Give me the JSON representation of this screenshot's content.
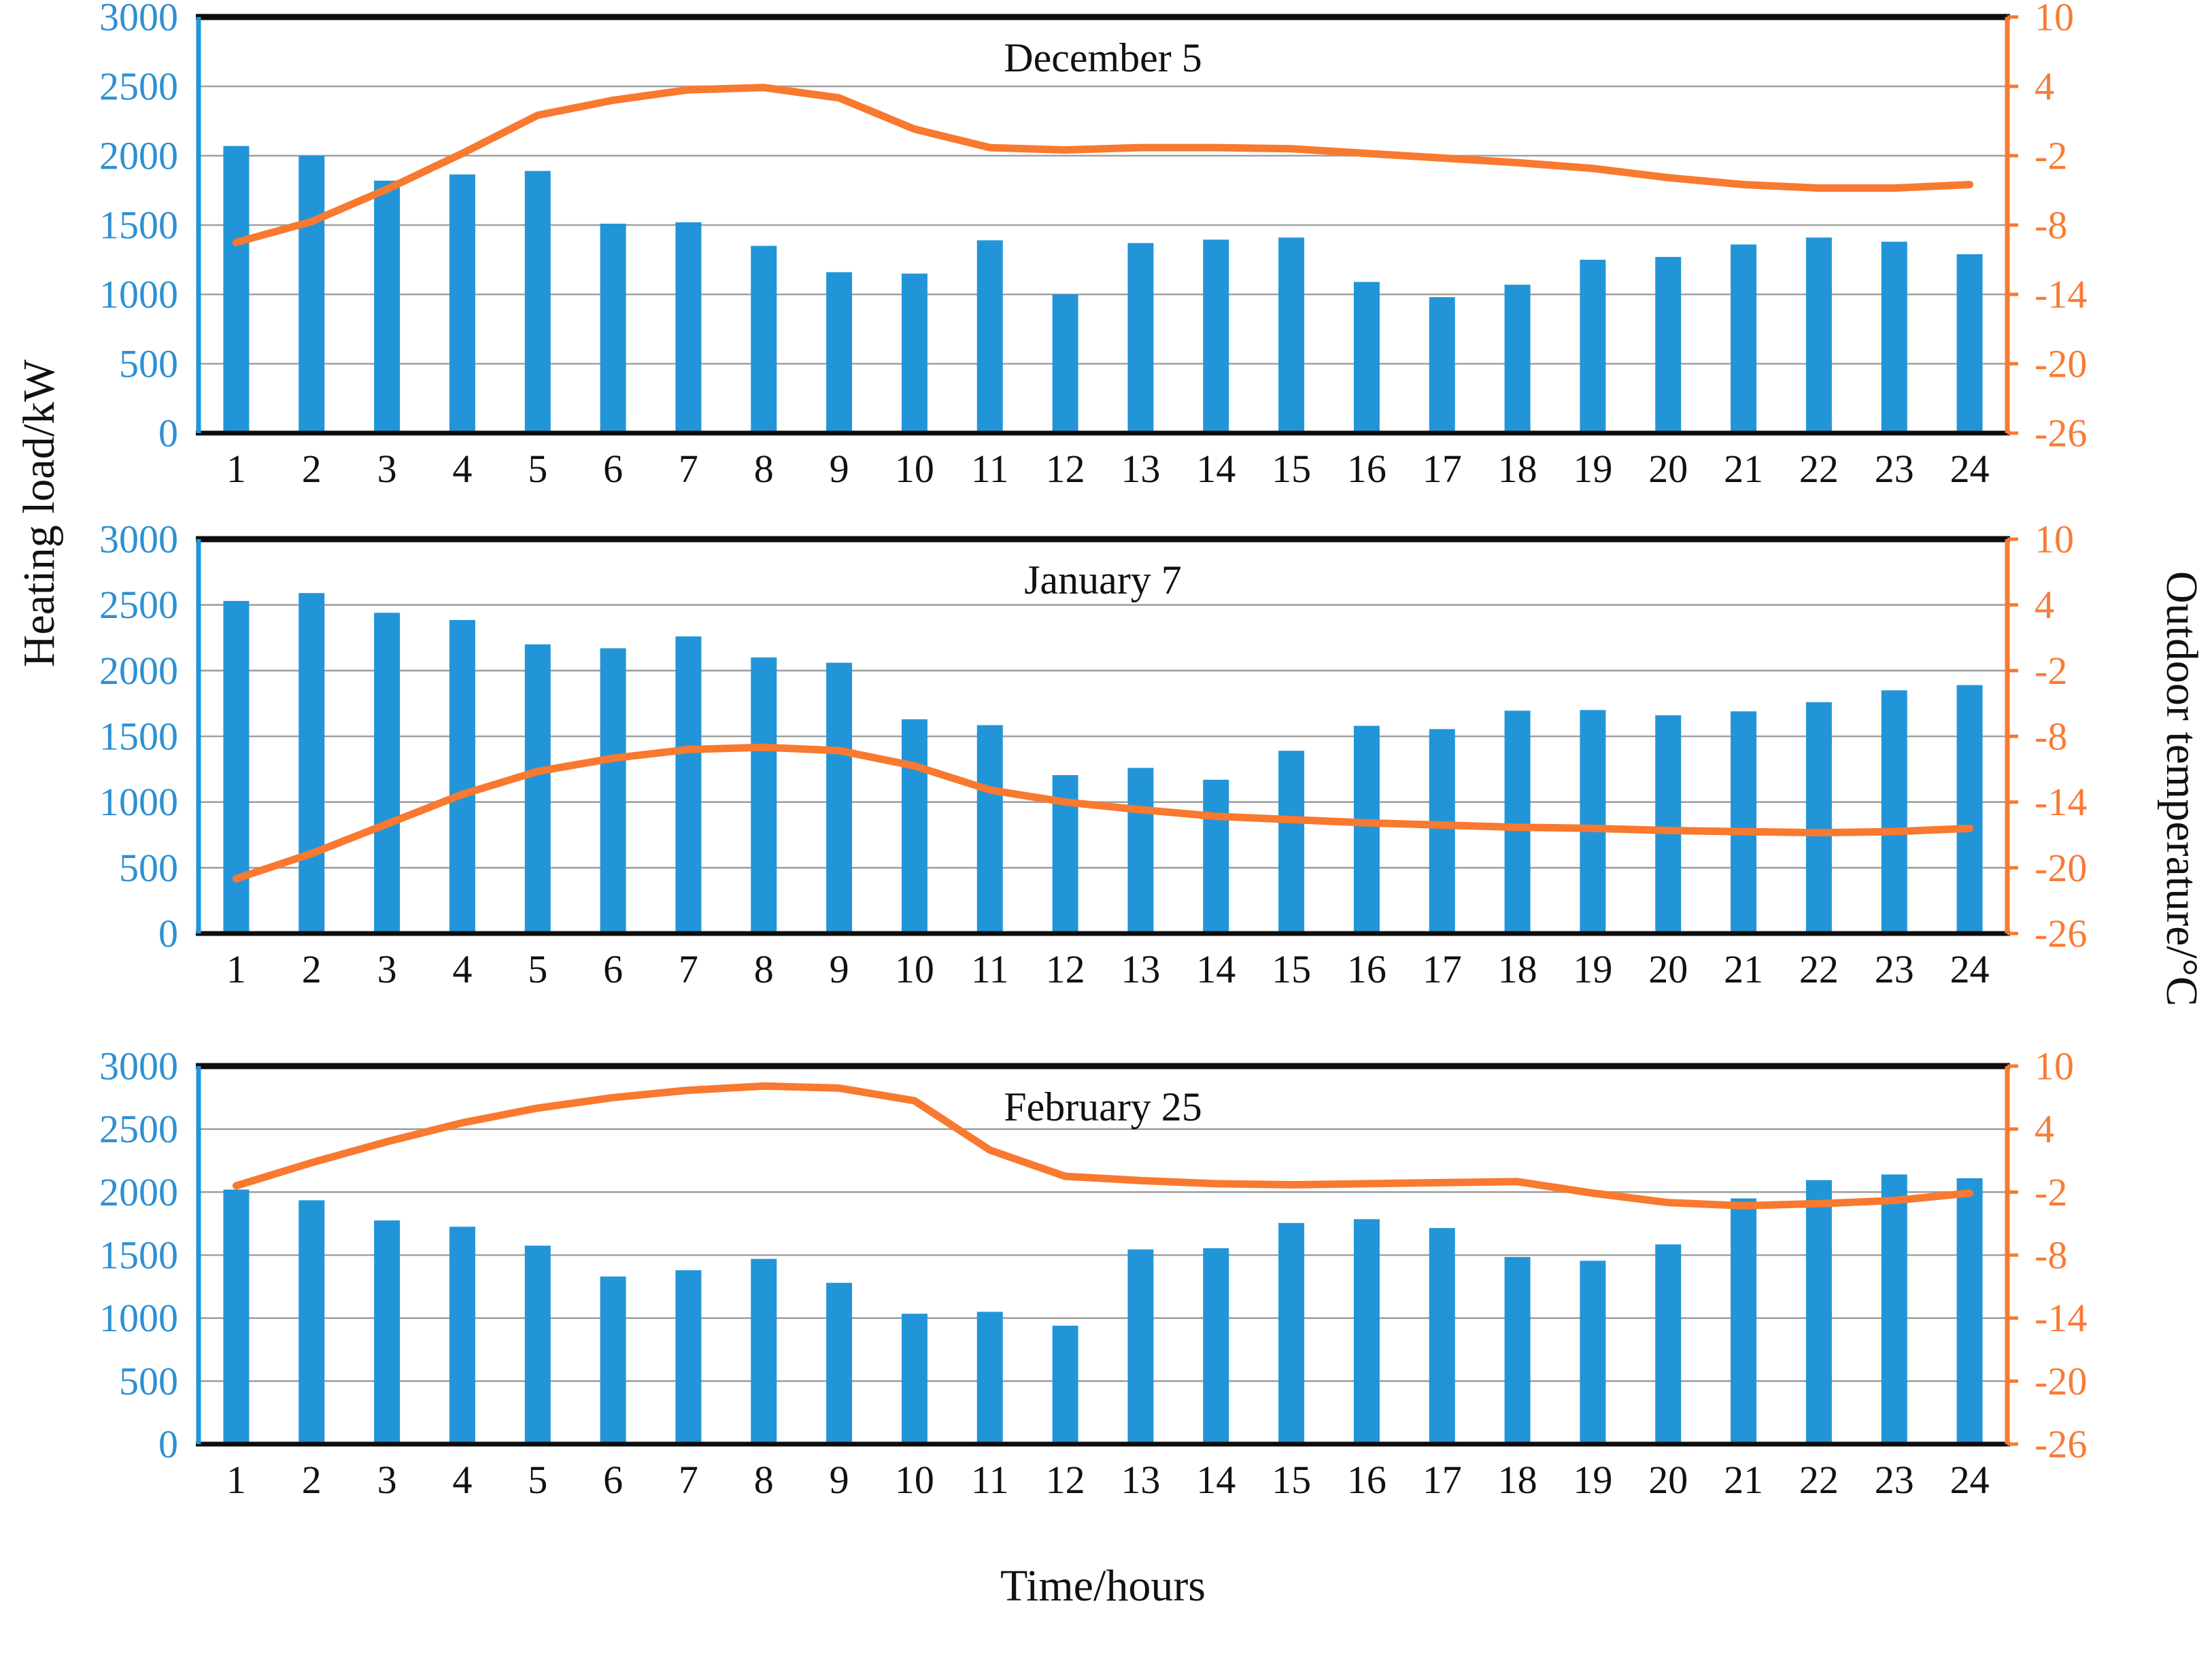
{
  "figure": {
    "y_axis_left": {
      "label": "Heating load/kW",
      "ticks": [
        0,
        500,
        1000,
        1500,
        2000,
        2500,
        3000
      ],
      "color": "#2e90d2"
    },
    "y_axis_right": {
      "label": "Outdoor temperature/°C",
      "ticks": [
        10,
        4,
        -2,
        -8,
        -14,
        -20,
        -26
      ],
      "color": "#f87c35"
    },
    "x_axis": {
      "label": "Time/hours",
      "ticks": [
        1,
        2,
        3,
        4,
        5,
        6,
        7,
        8,
        9,
        10,
        11,
        12,
        13,
        14,
        15,
        16,
        17,
        18,
        19,
        20,
        21,
        22,
        23,
        24
      ]
    }
  },
  "colors": {
    "bar": "#2295d8",
    "line": "#f8792f",
    "grid": "#a0a0a0",
    "frame": "#0d0d0d",
    "left_tick_text": "#2e90d2",
    "right_tick_text": "#f87c35",
    "x_tick_text": "#111111"
  },
  "chart_data": [
    {
      "type": "bar",
      "title": "December 5",
      "x": [
        1,
        2,
        3,
        4,
        5,
        6,
        7,
        8,
        9,
        10,
        11,
        12,
        13,
        14,
        15,
        16,
        17,
        18,
        19,
        20,
        21,
        22,
        23,
        24
      ],
      "xlabel": "Time/hours",
      "ylabel_left": "Heating load/kW",
      "ylabel_right": "Outdoor temperature/°C",
      "left_ylim": [
        0,
        3000
      ],
      "right_ylim": [
        -26,
        10
      ],
      "grid": true,
      "series": [
        {
          "name": "Heating load/kW",
          "type": "bar",
          "axis": "left",
          "values": [
            2070,
            2000,
            1820,
            1865,
            1890,
            1510,
            1520,
            1350,
            1160,
            1150,
            1390,
            1000,
            1370,
            1395,
            1410,
            1090,
            980,
            1070,
            1250,
            1270,
            1360,
            1410,
            1380,
            1290
          ]
        },
        {
          "name": "Outdoor temperature/°C",
          "type": "line",
          "axis": "right",
          "values": [
            -9.5,
            -7.7,
            -4.9,
            -1.8,
            1.5,
            2.8,
            3.7,
            3.9,
            3.0,
            0.3,
            -1.3,
            -1.5,
            -1.3,
            -1.3,
            -1.4,
            -1.8,
            -2.2,
            -2.6,
            -3.1,
            -3.9,
            -4.5,
            -4.8,
            -4.8,
            -4.5
          ]
        }
      ]
    },
    {
      "type": "bar",
      "title": "January 7",
      "x": [
        1,
        2,
        3,
        4,
        5,
        6,
        7,
        8,
        9,
        10,
        11,
        12,
        13,
        14,
        15,
        16,
        17,
        18,
        19,
        20,
        21,
        22,
        23,
        24
      ],
      "xlabel": "Time/hours",
      "ylabel_left": "Heating load/kW",
      "ylabel_right": "Outdoor temperature/°C",
      "left_ylim": [
        0,
        3000
      ],
      "right_ylim": [
        -26,
        10
      ],
      "grid": true,
      "series": [
        {
          "name": "Heating load/kW",
          "type": "bar",
          "axis": "left",
          "values": [
            2530,
            2590,
            2440,
            2385,
            2200,
            2170,
            2260,
            2100,
            2060,
            1630,
            1585,
            1205,
            1260,
            1170,
            1390,
            1580,
            1555,
            1695,
            1700,
            1660,
            1690,
            1760,
            1850,
            1890
          ]
        },
        {
          "name": "Outdoor temperature/°C",
          "type": "line",
          "axis": "right",
          "values": [
            -21.0,
            -18.7,
            -16.0,
            -13.3,
            -11.2,
            -10.0,
            -9.2,
            -9.0,
            -9.3,
            -10.7,
            -12.9,
            -14.0,
            -14.7,
            -15.3,
            -15.6,
            -15.9,
            -16.1,
            -16.3,
            -16.4,
            -16.6,
            -16.7,
            -16.8,
            -16.7,
            -16.4
          ]
        }
      ]
    },
    {
      "type": "bar",
      "title": "February 25",
      "x": [
        1,
        2,
        3,
        4,
        5,
        6,
        7,
        8,
        9,
        10,
        11,
        12,
        13,
        14,
        15,
        16,
        17,
        18,
        19,
        20,
        21,
        22,
        23,
        24
      ],
      "xlabel": "Time/hours",
      "ylabel_left": "Heating load/kW",
      "ylabel_right": "Outdoor temperature/°C",
      "left_ylim": [
        0,
        3000
      ],
      "right_ylim": [
        -26,
        10
      ],
      "grid": true,
      "series": [
        {
          "name": "Heating load/kW",
          "type": "bar",
          "axis": "left",
          "values": [
            2020,
            1935,
            1775,
            1725,
            1575,
            1330,
            1380,
            1470,
            1280,
            1035,
            1050,
            940,
            1545,
            1555,
            1755,
            1785,
            1715,
            1485,
            1455,
            1585,
            1950,
            2095,
            2140,
            2110
          ]
        },
        {
          "name": "Outdoor temperature/°C",
          "type": "line",
          "axis": "right",
          "values": [
            -1.4,
            0.8,
            2.8,
            4.6,
            6.0,
            7.0,
            7.7,
            8.1,
            7.9,
            6.7,
            2.0,
            -0.5,
            -0.9,
            -1.2,
            -1.3,
            -1.2,
            -1.1,
            -1.0,
            -2.1,
            -3.0,
            -3.3,
            -3.1,
            -2.8,
            -2.1
          ]
        }
      ]
    }
  ]
}
